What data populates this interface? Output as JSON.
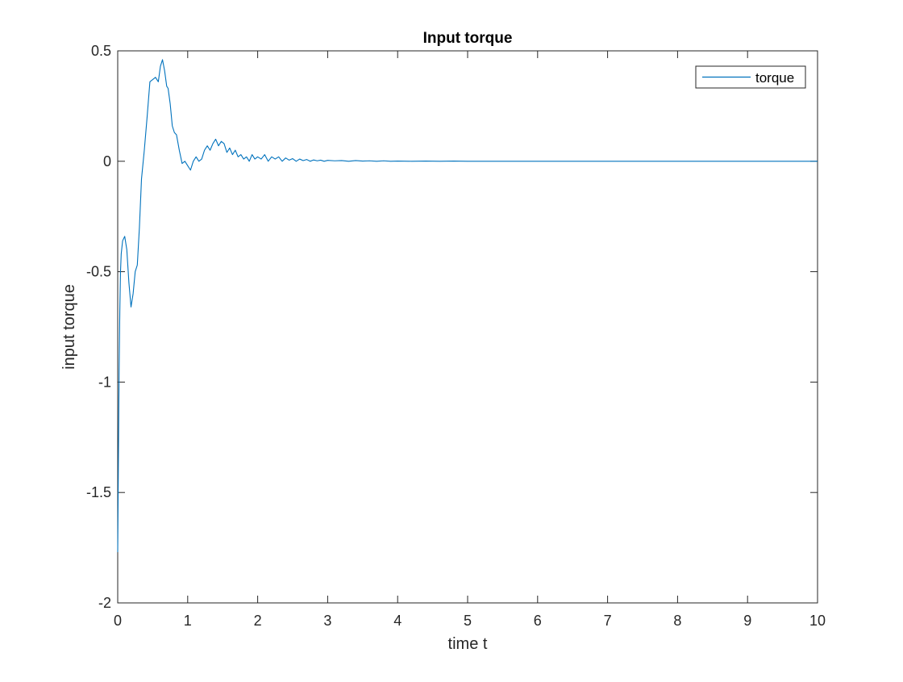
{
  "chart_data": {
    "type": "line",
    "title": "Input torque",
    "xlabel": "time t",
    "ylabel": "input torque",
    "xlim": [
      0,
      10
    ],
    "ylim": [
      -2,
      0.5
    ],
    "xticks": [
      0,
      1,
      2,
      3,
      4,
      5,
      6,
      7,
      8,
      9,
      10
    ],
    "xtick_labels": [
      "0",
      "1",
      "2",
      "3",
      "4",
      "5",
      "6",
      "7",
      "8",
      "9",
      "10"
    ],
    "yticks": [
      -2,
      -1.5,
      -1,
      -0.5,
      0,
      0.5
    ],
    "ytick_labels": [
      "-2",
      "-1.5",
      "-1",
      "-0.5",
      "0",
      "0.5"
    ],
    "grid": false,
    "legend_position": "top-right",
    "colors": {
      "series": "#0072BD",
      "axes": "#262626",
      "background": "#ffffff"
    },
    "series": [
      {
        "name": "torque",
        "x": [
          0,
          0.01,
          0.02,
          0.03,
          0.04,
          0.05,
          0.07,
          0.1,
          0.13,
          0.16,
          0.19,
          0.22,
          0.25,
          0.28,
          0.31,
          0.34,
          0.38,
          0.42,
          0.46,
          0.5,
          0.54,
          0.58,
          0.61,
          0.64,
          0.67,
          0.7,
          0.72,
          0.75,
          0.78,
          0.81,
          0.84,
          0.88,
          0.92,
          0.96,
          1.0,
          1.04,
          1.08,
          1.12,
          1.16,
          1.2,
          1.24,
          1.28,
          1.32,
          1.36,
          1.4,
          1.44,
          1.48,
          1.52,
          1.56,
          1.6,
          1.64,
          1.68,
          1.72,
          1.76,
          1.8,
          1.84,
          1.88,
          1.92,
          1.96,
          2.0,
          2.05,
          2.1,
          2.15,
          2.2,
          2.25,
          2.3,
          2.35,
          2.4,
          2.45,
          2.5,
          2.55,
          2.6,
          2.65,
          2.7,
          2.75,
          2.8,
          2.85,
          2.9,
          2.95,
          3.0,
          3.1,
          3.2,
          3.3,
          3.4,
          3.5,
          3.6,
          3.7,
          3.8,
          3.9,
          4.0,
          4.2,
          4.4,
          4.6,
          4.8,
          5.0,
          5.5,
          6.0,
          6.5,
          7.0,
          7.5,
          8.0,
          8.5,
          9.0,
          9.5,
          10.0
        ],
        "y": [
          -1.77,
          -1.35,
          -0.95,
          -0.68,
          -0.5,
          -0.42,
          -0.36,
          -0.34,
          -0.4,
          -0.55,
          -0.66,
          -0.6,
          -0.5,
          -0.47,
          -0.3,
          -0.08,
          0.05,
          0.2,
          0.36,
          0.37,
          0.38,
          0.36,
          0.43,
          0.46,
          0.41,
          0.34,
          0.33,
          0.26,
          0.16,
          0.13,
          0.12,
          0.05,
          -0.01,
          0.0,
          -0.02,
          -0.04,
          0.0,
          0.02,
          0.0,
          0.01,
          0.05,
          0.07,
          0.05,
          0.08,
          0.1,
          0.07,
          0.09,
          0.08,
          0.04,
          0.06,
          0.03,
          0.05,
          0.02,
          0.03,
          0.01,
          0.02,
          0.0,
          0.03,
          0.01,
          0.02,
          0.01,
          0.03,
          0.0,
          0.02,
          0.01,
          0.02,
          0.0,
          0.015,
          0.005,
          0.012,
          0.0,
          0.01,
          0.003,
          0.008,
          0.0,
          0.006,
          0.002,
          0.005,
          0.0,
          0.004,
          0.002,
          0.003,
          0.0,
          0.003,
          0.001,
          0.002,
          0.0,
          0.002,
          0.0,
          0.001,
          0.0,
          0.001,
          0.0,
          0.001,
          0.0,
          0.0,
          0.0,
          0.0,
          0.0,
          0.0,
          0.0,
          0.0,
          0.0,
          0.0,
          0.0
        ]
      }
    ]
  }
}
